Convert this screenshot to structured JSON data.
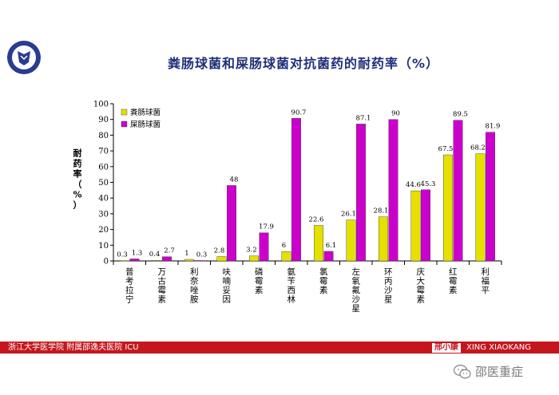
{
  "title": "粪肠球菌和屎肠球菌对抗菌药的耐药率（%）",
  "footer": {
    "left_text": "浙江大学医学院 附属邵逸夫医院 ICU",
    "name": "邢小康",
    "name_en": "XING XIAOKANG"
  },
  "watermark": {
    "text": "邵医重症"
  },
  "colors": {
    "footer_red": "#c5161d",
    "series1": "#e6e000",
    "series2": "#cc00cc",
    "title": "#1f2f7a"
  },
  "chart_data": {
    "type": "bar",
    "title": "粪肠球菌和屎肠球菌对抗菌药的耐药率（%）",
    "ylabel": "耐药率（%）",
    "xlabel": "",
    "ylim": [
      0,
      100
    ],
    "yticks": [
      0,
      10,
      20,
      30,
      40,
      50,
      60,
      70,
      80,
      90,
      100
    ],
    "grid": false,
    "legend": "top-left",
    "categories": [
      "普考拉宁",
      "万古霉素",
      "利奈唑胺",
      "呋喃妥因",
      "磷霉素",
      "氨苄西林",
      "氯霉素",
      "左氧氟沙星",
      "环丙沙星",
      "庆大霉素",
      "红霉素",
      "利福平"
    ],
    "series": [
      {
        "name": "粪肠球菌",
        "color": "#e6e000",
        "values": [
          0.3,
          0.4,
          1,
          2.8,
          3.2,
          6,
          22.6,
          26.1,
          28.1,
          44.6,
          67.5,
          68.2
        ]
      },
      {
        "name": "屎肠球菌",
        "color": "#cc00cc",
        "values": [
          1.3,
          2.7,
          0.3,
          48,
          17.9,
          90.7,
          6.1,
          87.1,
          90,
          45.3,
          89.5,
          81.9
        ]
      }
    ],
    "data_labels": [
      [
        "0.3",
        "0.4",
        "1",
        "2.8",
        "3.2",
        "6",
        "22.6",
        "26.1",
        "28.1",
        "44.6",
        "67.5",
        "68.2"
      ],
      [
        "1.3",
        "2.7",
        "0.3",
        "48",
        "17.9",
        "90.7",
        "6.1",
        "87.1",
        "90",
        "45.3",
        "89.5",
        "81.9"
      ]
    ]
  }
}
